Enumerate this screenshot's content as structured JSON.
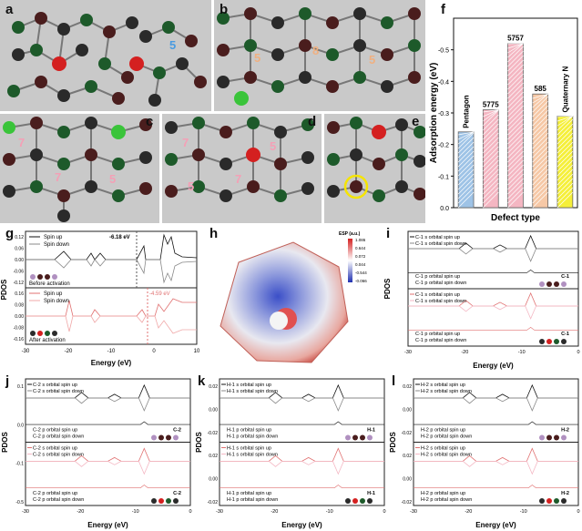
{
  "labels": {
    "a": "a",
    "b": "b",
    "c": "c",
    "d": "d",
    "e": "e",
    "f": "f",
    "g": "g",
    "h": "h",
    "i": "i",
    "j": "j",
    "k": "k",
    "l": "l"
  },
  "rings": {
    "a": [
      "5"
    ],
    "b": [
      "5",
      "8",
      "5"
    ],
    "c": [
      "7",
      "7",
      "5"
    ],
    "d": [
      "7",
      "5",
      "7",
      "5"
    ]
  },
  "chart_data": [
    {
      "type": "bar",
      "panel": "f",
      "categories": [
        "Pentagon",
        "5775",
        "5757",
        "585",
        "Quaternary N"
      ],
      "values": [
        -0.24,
        -0.31,
        -0.52,
        -0.36,
        -0.29
      ],
      "bar_labels": [
        "Pentagon",
        "5775",
        "5757",
        "585",
        "Quaternary N"
      ],
      "colors": [
        "#9ec3e6",
        "#f4b6c2",
        "#f4b6c2",
        "#f6c8a6",
        "#f5ef3a"
      ],
      "xlabel": "Defect type",
      "ylabel": "Adsorption energy (eV)",
      "ylim": [
        0,
        -0.6
      ],
      "yticks": [
        "0.0",
        "-0.1",
        "-0.2",
        "-0.3",
        "-0.4",
        "-0.5"
      ]
    },
    {
      "type": "line",
      "panel": "g",
      "xlabel": "Energy (eV)",
      "ylabel": "PDOS",
      "xticks": [
        "-30",
        "-20",
        "-10",
        "0",
        "10"
      ],
      "top": {
        "legend": [
          "Spin up",
          "Spin down"
        ],
        "note": "Before activation",
        "annotation": "-6.18 eV",
        "yticks": [
          "0.12",
          "0.06",
          "0.00",
          "-0.06",
          "-0.12"
        ]
      },
      "bottom": {
        "legend": [
          "Spin up",
          "Spin down"
        ],
        "note": "After activation",
        "annotation": "-4.59 eV",
        "yticks": [
          "0.16",
          "0.08",
          "0.00",
          "-0.08",
          "-0.16"
        ]
      }
    },
    {
      "type": "heatmap",
      "panel": "h",
      "legend_title": "ESP (a.u.)",
      "scale": [
        "1.086",
        "0.644",
        "0.072",
        "0.044",
        "-0.544",
        "-0.066"
      ]
    },
    {
      "type": "line",
      "panel": "i",
      "xlabel": "Energy (eV)",
      "ylabel": "PDOS",
      "xticks": [
        "-30",
        "-20",
        "-10",
        "0"
      ],
      "top": {
        "legend_s": [
          "C-1 s orbital spin up",
          "C-1 s orbital spin down"
        ],
        "legend_p": [
          "C-1 p orbital spin up",
          "C-1 p orbital spin down"
        ],
        "site": "C-1"
      },
      "bottom": {
        "legend_s": [
          "C-1 s orbital spin up",
          "C-1 s orbital spin down"
        ],
        "legend_p": [
          "C-1 p orbital spin up",
          "C-1 p orbital spin down"
        ],
        "site": "C-1"
      }
    },
    {
      "type": "line",
      "panel": "j",
      "xlabel": "Energy (eV)",
      "ylabel": "PDOS",
      "xticks": [
        "-30",
        "-20",
        "-10",
        "0"
      ],
      "yticks": [
        "0.1",
        "0.0",
        "-0.1",
        "-0.5"
      ],
      "top": {
        "legend_s": [
          "C-2 s orbital spin up",
          "C-2 s orbital spin down"
        ],
        "legend_p": [
          "C-2 p orbital spin up",
          "C-2 p orbital spin down"
        ],
        "site": "C-2"
      },
      "bottom": {
        "legend_s": [
          "C-2 s orbital spin up",
          "C-2 s orbital spin down"
        ],
        "legend_p": [
          "C-2 p orbital spin up",
          "C-2 p orbital spin down"
        ],
        "site": "C-2"
      }
    },
    {
      "type": "line",
      "panel": "k",
      "xlabel": "Energy (eV)",
      "ylabel": "PDOS",
      "xticks": [
        "-30",
        "-20",
        "-10",
        "0"
      ],
      "yticks": [
        "0.02",
        "0.00",
        "-0.02",
        "0.02",
        "0.00",
        "-0.02"
      ],
      "top": {
        "legend_s": [
          "H-1 s orbital spin up",
          "H-1 s orbital spin down"
        ],
        "legend_p": [
          "H-1 p orbital spin up",
          "H-1 p orbital spin down"
        ],
        "site": "H-1"
      },
      "bottom": {
        "legend_s": [
          "H-1 s orbital spin up",
          "H-1 s orbital spin down"
        ],
        "legend_p": [
          "H-1 p orbital spin up",
          "H-1 p orbital spin down"
        ],
        "site": "H-1"
      }
    },
    {
      "type": "line",
      "panel": "l",
      "xlabel": "Energy (eV)",
      "ylabel": "PDOS",
      "xticks": [
        "-30",
        "-20",
        "-10",
        "0"
      ],
      "yticks": [
        "0.02",
        "0.00",
        "-0.02",
        "0.02",
        "0.00",
        "-0.02"
      ],
      "top": {
        "legend_s": [
          "H-2 s orbital spin up",
          "H-2 s orbital spin down"
        ],
        "legend_p": [
          "H-2 p orbital spin up",
          "H-2 p orbital spin down"
        ],
        "site": "H-2"
      },
      "bottom": {
        "legend_s": [
          "H-2 s orbital spin up",
          "H-2 s orbital spin down"
        ],
        "legend_p": [
          "H-2 p orbital spin up",
          "H-2 p orbital spin down"
        ],
        "site": "H-2"
      }
    }
  ]
}
